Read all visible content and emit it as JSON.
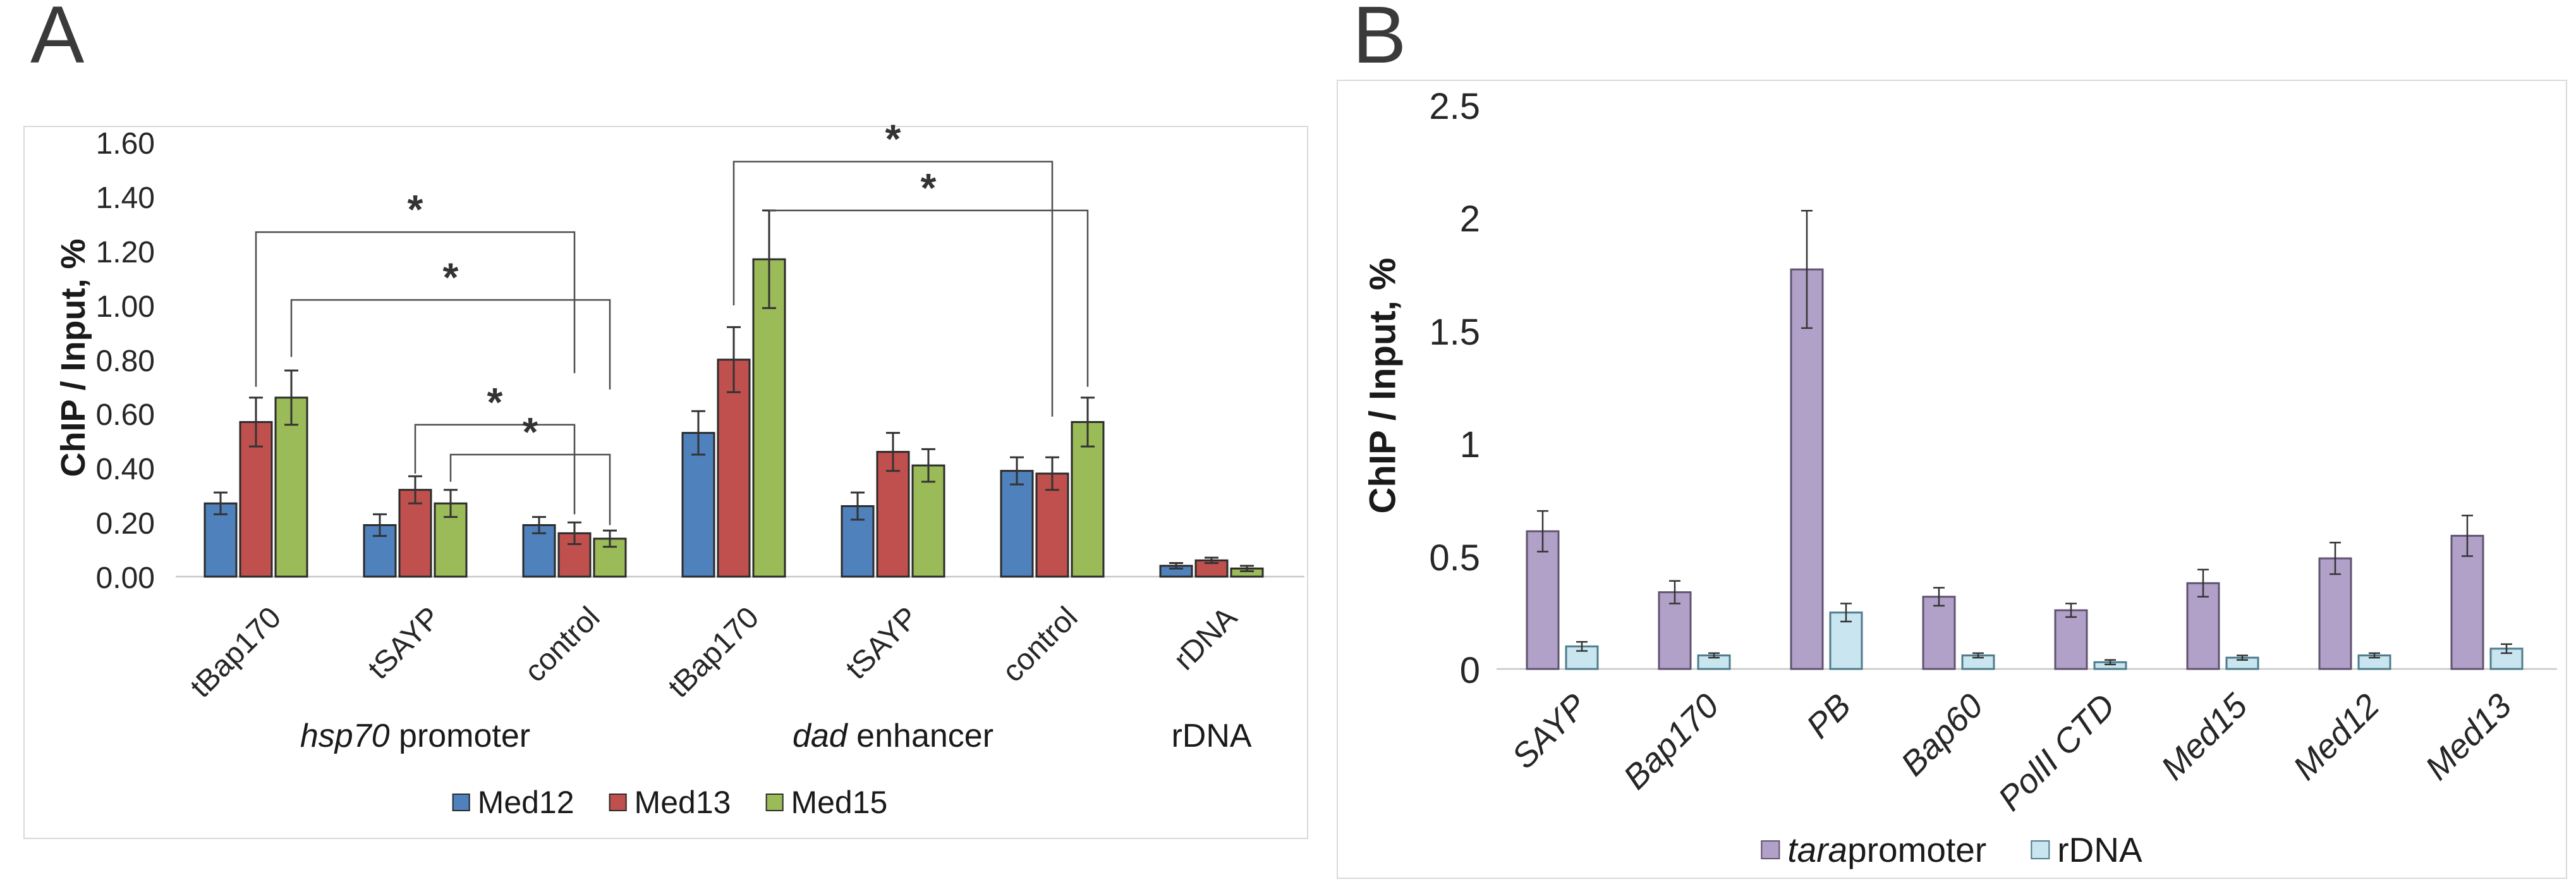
{
  "chart_data": [
    {
      "id": "panel-A",
      "type": "bar",
      "panel_label": "A",
      "ylabel": "ChIP / Input, %",
      "ylim": [
        0,
        1.6
      ],
      "grid": false,
      "legend_position": "bottom",
      "yticks": [
        {
          "label": "0.00",
          "v": 0.0
        },
        {
          "label": "0.20",
          "v": 0.2
        },
        {
          "label": "0.40",
          "v": 0.4
        },
        {
          "label": "0.60",
          "v": 0.6
        },
        {
          "label": "0.80",
          "v": 0.8
        },
        {
          "label": "1.00",
          "v": 1.0
        },
        {
          "label": "1.20",
          "v": 1.2
        },
        {
          "label": "1.40",
          "v": 1.4
        },
        {
          "label": "1.60",
          "v": 1.6
        }
      ],
      "categories": [
        "tBap170",
        "tSAYP",
        "control",
        "tBap170",
        "tSAYP",
        "control",
        "rDNA"
      ],
      "category_style": "normal",
      "group_labels": [
        {
          "italic": "hsp70",
          "text": " promoter",
          "at_category": 1
        },
        {
          "italic": "dad",
          "text": " enhancer",
          "at_category": 4
        },
        {
          "italic": "",
          "text": "rDNA",
          "at_category": 6
        }
      ],
      "series": [
        {
          "name": "Med12",
          "color": "#4F81BD",
          "border_color": "#2B2B2B",
          "values": [
            0.27,
            0.19,
            0.19,
            0.53,
            0.26,
            0.39,
            0.04
          ],
          "errors": [
            0.04,
            0.04,
            0.03,
            0.08,
            0.05,
            0.05,
            0.01
          ]
        },
        {
          "name": "Med13",
          "color": "#C0504D",
          "border_color": "#2B2B2B",
          "values": [
            0.57,
            0.32,
            0.16,
            0.8,
            0.46,
            0.38,
            0.06
          ],
          "errors": [
            0.09,
            0.05,
            0.04,
            0.12,
            0.07,
            0.06,
            0.01
          ]
        },
        {
          "name": "Med15",
          "color": "#9BBB59",
          "border_color": "#2B2B2B",
          "values": [
            0.66,
            0.27,
            0.14,
            1.17,
            0.41,
            0.57,
            0.03
          ],
          "errors": [
            0.1,
            0.05,
            0.03,
            0.18,
            0.06,
            0.09,
            0.01
          ]
        }
      ],
      "legend": [
        {
          "italic": "",
          "text": "Med12",
          "color": "#4F81BD",
          "border_color": "#2B2B2B"
        },
        {
          "italic": "",
          "text": "Med13",
          "color": "#C0504D",
          "border_color": "#2B2B2B"
        },
        {
          "italic": "",
          "text": "Med15",
          "color": "#9BBB59",
          "border_color": "#2B2B2B"
        }
      ],
      "significance_brackets": [
        {
          "from_category": 0,
          "from_series": 1,
          "to_category": 2,
          "to_series": 1,
          "level": 1.27,
          "left_end": 0.7,
          "right_end": 0.75,
          "label": "*"
        },
        {
          "from_category": 0,
          "from_series": 2,
          "to_category": 2,
          "to_series": 2,
          "level": 1.02,
          "left_end": 0.81,
          "right_end": 0.69,
          "label": "*"
        },
        {
          "from_category": 1,
          "from_series": 1,
          "to_category": 2,
          "to_series": 1,
          "level": 0.56,
          "left_end": 0.38,
          "right_end": 0.23,
          "label": "*"
        },
        {
          "from_category": 1,
          "from_series": 2,
          "to_category": 2,
          "to_series": 2,
          "level": 0.45,
          "left_end": 0.35,
          "right_end": 0.19,
          "label": "*"
        },
        {
          "from_category": 3,
          "from_series": 1,
          "to_category": 5,
          "to_series": 1,
          "level": 1.53,
          "left_end": 1.0,
          "right_end": 0.59,
          "label": "*"
        },
        {
          "from_category": 3,
          "from_series": 2,
          "to_category": 5,
          "to_series": 2,
          "level": 1.35,
          "left_end": 1.35,
          "right_end": 0.7,
          "label": "*"
        }
      ]
    },
    {
      "id": "panel-B",
      "type": "bar",
      "panel_label": "B",
      "ylabel": "ChIP / Input, %",
      "ylim": [
        0,
        2.5
      ],
      "grid": false,
      "legend_position": "bottom",
      "yticks": [
        {
          "label": "0",
          "v": 0.0
        },
        {
          "label": "0.5",
          "v": 0.5
        },
        {
          "label": "1",
          "v": 1.0
        },
        {
          "label": "1.5",
          "v": 1.5
        },
        {
          "label": "2",
          "v": 2.0
        },
        {
          "label": "2.5",
          "v": 2.5
        }
      ],
      "categories": [
        "SAYP",
        "Bap170",
        "PB",
        "Bap60",
        "PolII CTD",
        "Med15",
        "Med12",
        "Med13"
      ],
      "category_style": "italic",
      "group_labels": [],
      "series": [
        {
          "name": "tara promoter",
          "color": "#B1A0C7",
          "border_color": "#5F5470",
          "values": [
            0.61,
            0.34,
            1.77,
            0.32,
            0.26,
            0.38,
            0.49,
            0.59
          ],
          "errors": [
            0.09,
            0.05,
            0.26,
            0.04,
            0.03,
            0.06,
            0.07,
            0.09
          ]
        },
        {
          "name": "rDNA",
          "color": "#C9E5EF",
          "border_color": "#4E7C8C",
          "values": [
            0.1,
            0.06,
            0.25,
            0.06,
            0.03,
            0.05,
            0.06,
            0.09
          ],
          "errors": [
            0.02,
            0.01,
            0.04,
            0.01,
            0.01,
            0.01,
            0.01,
            0.02
          ]
        }
      ],
      "legend": [
        {
          "italic": "tara",
          "text": " promoter",
          "color": "#B1A0C7",
          "border_color": "#5F5470"
        },
        {
          "italic": "",
          "text": "rDNA",
          "color": "#C9E5EF",
          "border_color": "#4E7C8C"
        }
      ],
      "significance_brackets": []
    }
  ]
}
